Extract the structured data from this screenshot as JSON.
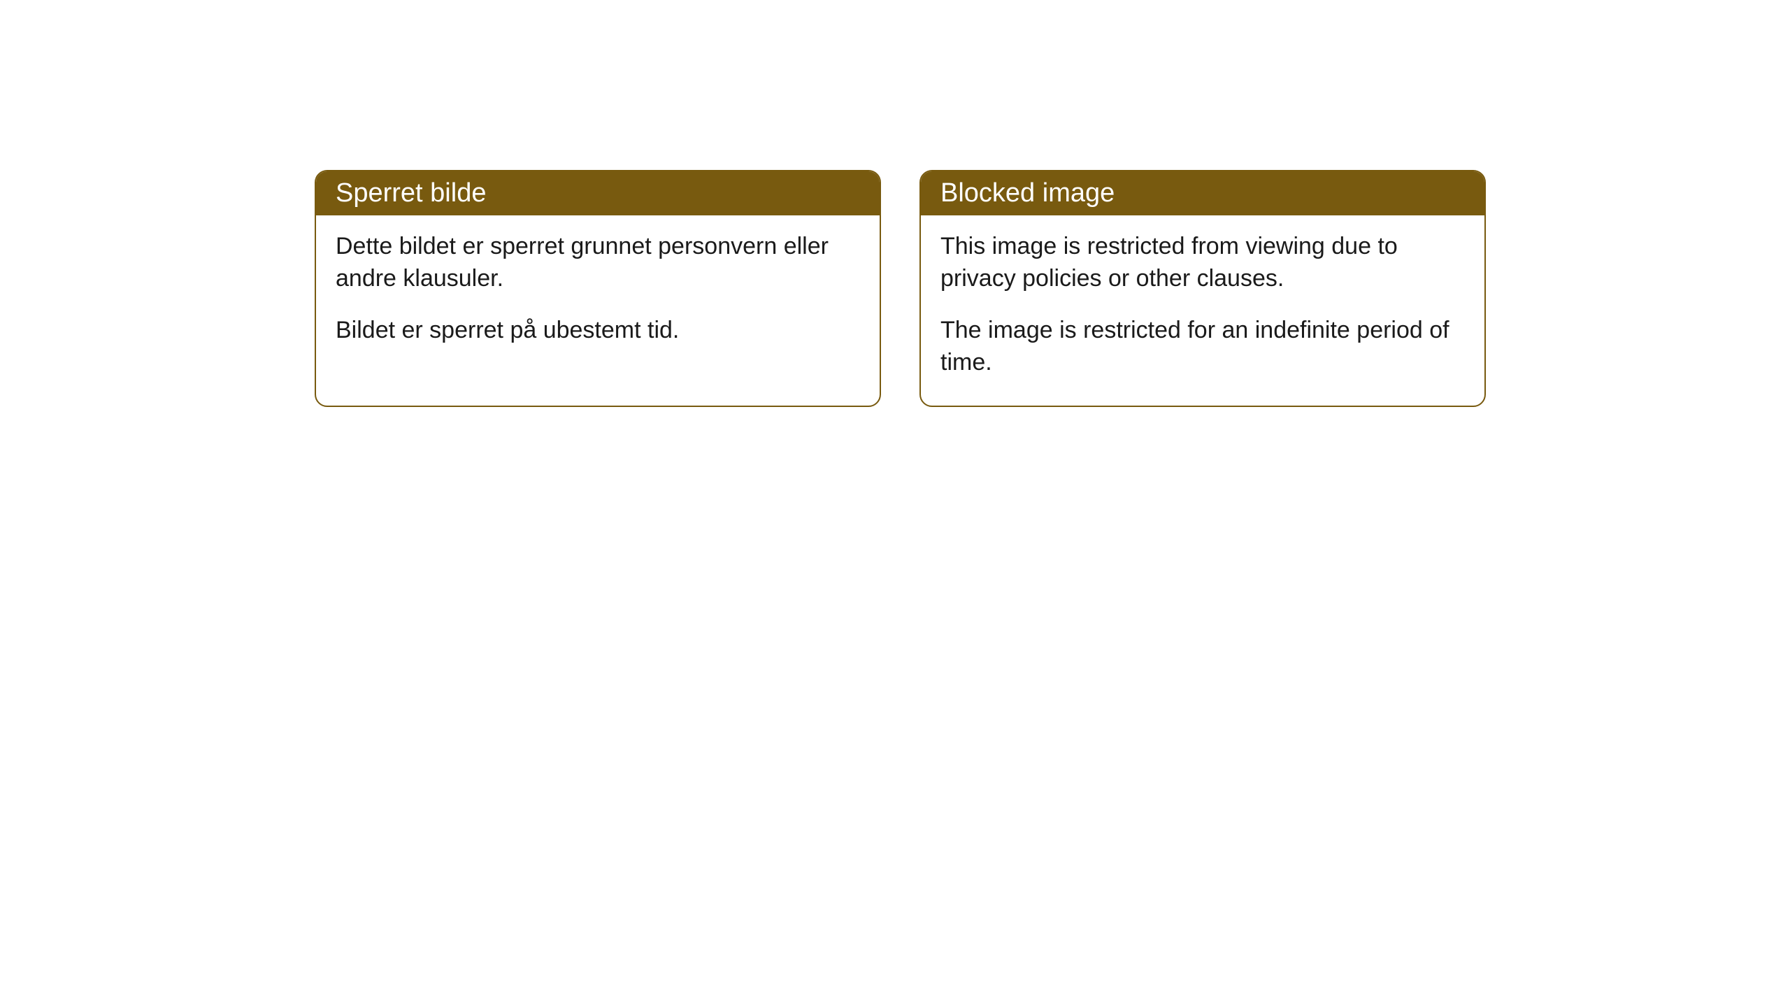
{
  "cards": [
    {
      "title": "Sperret bilde",
      "paragraph1": "Dette bildet er sperret grunnet personvern eller andre klausuler.",
      "paragraph2": "Bildet er sperret på ubestemt tid."
    },
    {
      "title": "Blocked image",
      "paragraph1": "This image is restricted from viewing due to privacy policies or other clauses.",
      "paragraph2": "The image is restricted for an indefinite period of time."
    }
  ],
  "styling": {
    "header_background": "#785a0f",
    "header_text_color": "#ffffff",
    "border_color": "#785a0f",
    "body_background": "#ffffff",
    "body_text_color": "#1a1a1a",
    "border_radius": 18,
    "title_fontsize": 38,
    "body_fontsize": 34
  }
}
